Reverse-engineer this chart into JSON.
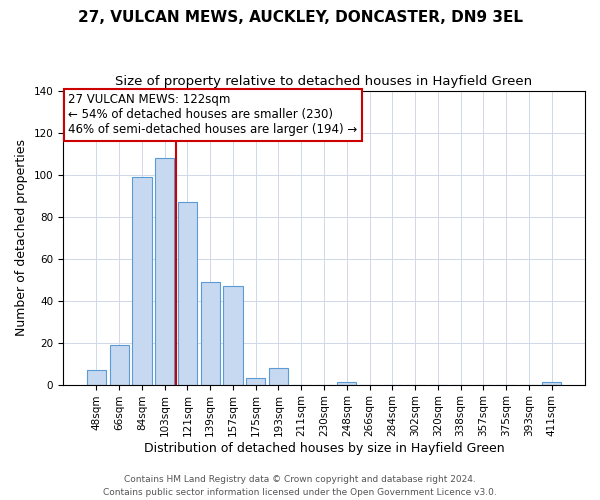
{
  "title": "27, VULCAN MEWS, AUCKLEY, DONCASTER, DN9 3EL",
  "subtitle": "Size of property relative to detached houses in Hayfield Green",
  "xlabel": "Distribution of detached houses by size in Hayfield Green",
  "ylabel": "Number of detached properties",
  "bar_labels": [
    "48sqm",
    "66sqm",
    "84sqm",
    "103sqm",
    "121sqm",
    "139sqm",
    "157sqm",
    "175sqm",
    "193sqm",
    "211sqm",
    "230sqm",
    "248sqm",
    "266sqm",
    "284sqm",
    "302sqm",
    "320sqm",
    "338sqm",
    "357sqm",
    "375sqm",
    "393sqm",
    "411sqm"
  ],
  "bar_heights": [
    7,
    19,
    99,
    108,
    87,
    49,
    47,
    3,
    8,
    0,
    0,
    1,
    0,
    0,
    0,
    0,
    0,
    0,
    0,
    0,
    1
  ],
  "bar_color": "#c6d9f0",
  "bar_edge_color": "#5b9bd5",
  "vline_x": 3.5,
  "vline_color": "#cc0000",
  "ylim": [
    0,
    140
  ],
  "yticks": [
    0,
    20,
    40,
    60,
    80,
    100,
    120,
    140
  ],
  "annotation_title": "27 VULCAN MEWS: 122sqm",
  "annotation_line1": "← 54% of detached houses are smaller (230)",
  "annotation_line2": "46% of semi-detached houses are larger (194) →",
  "annotation_box_edge": "#cc0000",
  "footer1": "Contains HM Land Registry data © Crown copyright and database right 2024.",
  "footer2": "Contains public sector information licensed under the Open Government Licence v3.0.",
  "title_fontsize": 11,
  "subtitle_fontsize": 9.5,
  "xlabel_fontsize": 9,
  "ylabel_fontsize": 9,
  "tick_fontsize": 7.5,
  "annotation_fontsize": 8.5,
  "footer_fontsize": 6.5
}
